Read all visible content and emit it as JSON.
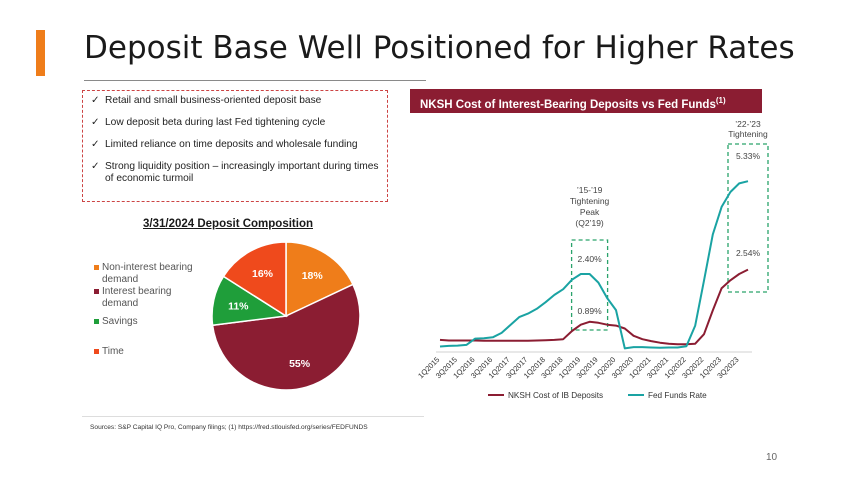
{
  "slide": {
    "title": "Deposit Base Well Positioned for Higher Rates",
    "page_number": "10",
    "accent_color": "#ef7d1a",
    "sources": "Sources: S&P Capital IQ Pro, Company filings; (1) https://fred.stlouisfed.org/series/FEDFUNDS"
  },
  "bullets": [
    "Retail and small business-oriented deposit base",
    "Low deposit beta during last Fed tightening cycle",
    "Limited reliance on time deposits and wholesale funding",
    "Strong liquidity position – increasingly important during times of economic turmoil"
  ],
  "check_icon": "✓",
  "chart_data": [
    {
      "type": "pie",
      "title": "3/31/2024 Deposit Composition",
      "categories": [
        "Non-interest bearing demand",
        "Interest bearing demand",
        "Savings",
        "Time"
      ],
      "values": [
        18,
        55,
        11,
        16
      ],
      "labels": [
        "18%",
        "55%",
        "11%",
        "16%"
      ],
      "colors": [
        "#ef7d1a",
        "#8b1d32",
        "#1f9e3a",
        "#ef4a1c"
      ],
      "legend": "left"
    },
    {
      "type": "line",
      "title": "NKSH Cost of Interest-Bearing Deposits vs Fed Funds",
      "title_sup": "(1)",
      "categories": [
        "1Q2015",
        "2Q2015",
        "3Q2015",
        "4Q2015",
        "1Q2016",
        "2Q2016",
        "3Q2016",
        "4Q2016",
        "1Q2017",
        "2Q2017",
        "3Q2017",
        "4Q2017",
        "1Q2018",
        "2Q2018",
        "3Q2018",
        "4Q2018",
        "1Q2019",
        "2Q2019",
        "3Q2019",
        "4Q2019",
        "1Q2020",
        "2Q2020",
        "3Q2020",
        "4Q2020",
        "1Q2021",
        "2Q2021",
        "3Q2021",
        "4Q2021",
        "1Q2022",
        "2Q2022",
        "3Q2022",
        "4Q2022",
        "1Q2023",
        "2Q2023",
        "3Q2023",
        "4Q2023"
      ],
      "tick_labels": [
        "1Q2015",
        "3Q2015",
        "1Q2016",
        "3Q2016",
        "1Q2017",
        "3Q2017",
        "1Q2018",
        "3Q2018",
        "1Q2019",
        "3Q2019",
        "1Q2020",
        "3Q2020",
        "1Q2021",
        "3Q2021",
        "1Q2022",
        "3Q2022",
        "1Q2023",
        "3Q2023"
      ],
      "ylim": [
        0,
        6
      ],
      "series": [
        {
          "name": "NKSH Cost of IB Deposits",
          "color": "#8b1d32",
          "values": [
            0.32,
            0.3,
            0.3,
            0.3,
            0.3,
            0.29,
            0.29,
            0.29,
            0.29,
            0.29,
            0.29,
            0.3,
            0.31,
            0.32,
            0.34,
            0.6,
            0.8,
            0.89,
            0.86,
            0.8,
            0.77,
            0.68,
            0.45,
            0.34,
            0.28,
            0.23,
            0.2,
            0.18,
            0.18,
            0.2,
            0.5,
            1.25,
            1.95,
            2.2,
            2.4,
            2.54
          ]
        },
        {
          "name": "Fed Funds Rate",
          "color": "#1aa3a3",
          "values": [
            0.11,
            0.13,
            0.14,
            0.16,
            0.36,
            0.37,
            0.4,
            0.54,
            0.79,
            1.04,
            1.15,
            1.3,
            1.51,
            1.74,
            1.92,
            2.22,
            2.4,
            2.4,
            2.13,
            1.64,
            1.26,
            0.05,
            0.09,
            0.09,
            0.08,
            0.07,
            0.08,
            0.08,
            0.12,
            0.77,
            2.19,
            3.65,
            4.52,
            4.99,
            5.26,
            5.33
          ]
        }
      ],
      "annotations": {
        "fed_peak_2019": "2.40%",
        "nksh_peak_2019": "0.89%",
        "fed_2023": "5.33%",
        "nksh_2023": "2.54%",
        "cycle_2019": [
          "’15-’19",
          "Tightening",
          "Peak",
          "(Q2’19)"
        ],
        "cycle_2023": [
          "’22-’23",
          "Tightening"
        ]
      },
      "legend": "bottom"
    }
  ]
}
